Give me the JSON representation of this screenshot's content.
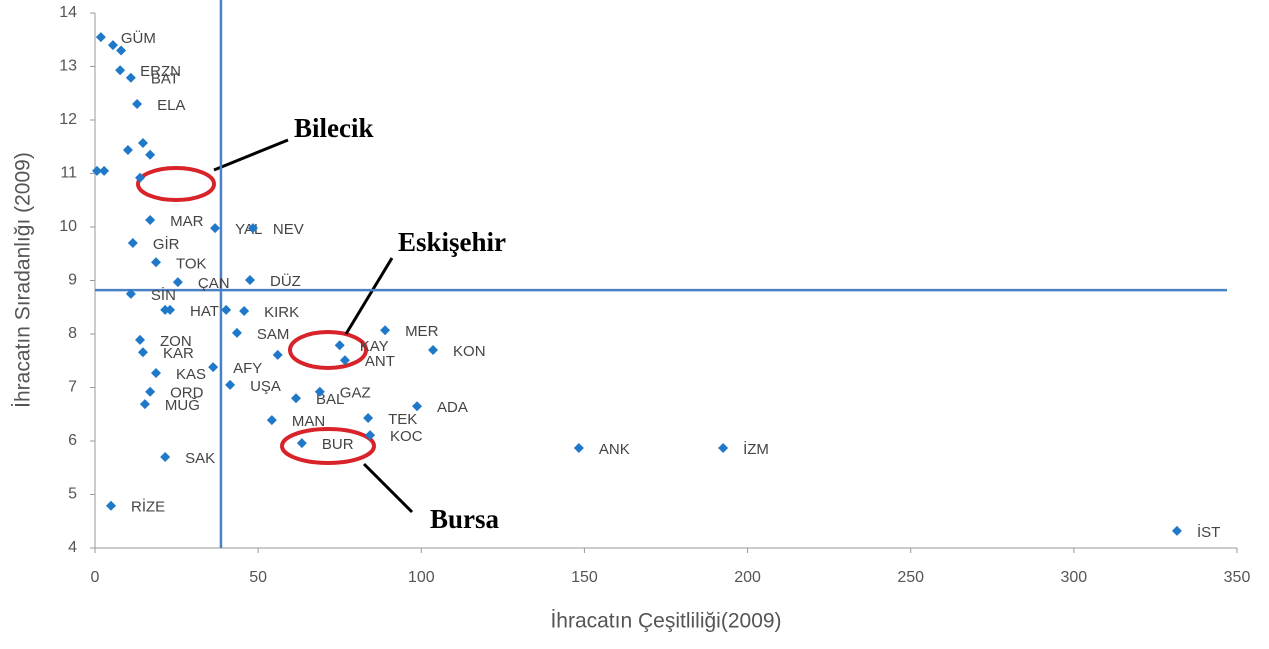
{
  "chart_data": {
    "type": "scatter",
    "x_label": "İhracatın Çeşitliliği(2009)",
    "y_label": "İhracatın Sıradanlığı (2009)",
    "xlim": [
      0,
      350
    ],
    "xticks": [
      0,
      50,
      100,
      150,
      200,
      250,
      300,
      350
    ],
    "ylim": [
      4,
      14
    ],
    "yticks": [
      4,
      5,
      6,
      7,
      8,
      9,
      10,
      11,
      12,
      13,
      14
    ],
    "color": "#1f78c8",
    "ref_line_color": "#4a80c4",
    "vlines": [
      38.6
    ],
    "hlines": [
      8.82
    ],
    "labels": [
      "GÜM",
      null,
      null,
      "ERZN",
      "BAT",
      "ELA",
      null,
      null,
      null,
      null,
      null,
      null,
      "MAR",
      "YAL",
      "NEV",
      "GİR",
      "TOK",
      "DÜZ",
      "SİN",
      "ÇAN",
      "HAT",
      null,
      null,
      "KIRK",
      "SAM",
      "MER",
      "ZON",
      "KAR",
      null,
      "KAY",
      "ANT",
      "KON",
      "KAS",
      "AFY",
      "UŞA",
      "ORD",
      "MUĞ",
      "BAL",
      "GAZ",
      "ADA",
      "TEK",
      "MAN",
      "KOC",
      "BUR",
      "ANK",
      "İZM",
      "SAK",
      "RİZE",
      "İST"
    ],
    "x": [
      1.8,
      5.5,
      8,
      7.7,
      11,
      12.9,
      14.7,
      10.1,
      16.9,
      0.6,
      2.8,
      13.8,
      16.9,
      36.8,
      48.4,
      11.6,
      18.7,
      47.5,
      11,
      25.4,
      23,
      21.5,
      40.2,
      45.7,
      43.5,
      88.9,
      13.8,
      14.7,
      56,
      75,
      76.6,
      103.6,
      18.7,
      36.2,
      41.4,
      16.9,
      15.3,
      61.6,
      68.9,
      98.7,
      83.7,
      54.2,
      84.3,
      63.4,
      148.3,
      192.5,
      21.5,
      4.9,
      331.6
    ],
    "y": [
      13.55,
      13.4,
      13.3,
      12.93,
      12.79,
      12.3,
      11.57,
      11.44,
      11.35,
      11.05,
      11.05,
      10.92,
      10.13,
      9.98,
      9.98,
      9.7,
      9.34,
      9.01,
      8.75,
      8.97,
      8.45,
      8.45,
      8.45,
      8.43,
      8.02,
      8.07,
      7.89,
      7.66,
      7.61,
      7.79,
      7.51,
      7.7,
      7.27,
      7.38,
      7.05,
      6.92,
      6.69,
      6.8,
      6.92,
      6.65,
      6.43,
      6.39,
      6.11,
      5.96,
      5.87,
      5.87,
      5.7,
      4.79,
      4.32
    ],
    "annotations": [
      "Bilecik",
      "Eskişehir",
      "Bursa"
    ]
  }
}
